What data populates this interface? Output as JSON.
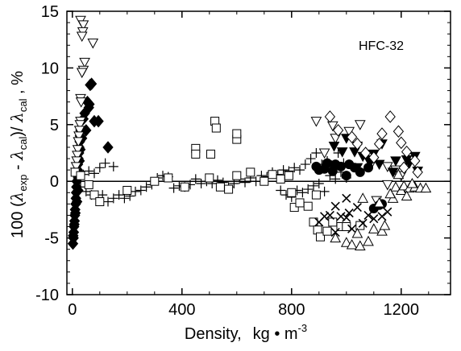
{
  "chart_data": {
    "type": "scatter",
    "annotation": "HFC-32",
    "xlabel_parts": {
      "main": "Density,",
      "unit": "kg • m",
      "exp": "-3"
    },
    "ylabel_parts": {
      "pre": "100 (",
      "lam1": "λ",
      "sub_exp": "exp",
      "minus": " - ",
      "lam2": "λ",
      "sub_cal": "cal",
      "mid": ")/ ",
      "lam3": "λ",
      "sub_cal2": "cal",
      "post": " ,   %"
    },
    "xlim": [
      -20,
      1380
    ],
    "ylim": [
      -10,
      15
    ],
    "x_ticks": [
      0,
      400,
      800,
      1200
    ],
    "x_tick_labels": [
      "0",
      "400",
      "800",
      "1200"
    ],
    "y_ticks": [
      -10,
      -5,
      0,
      5,
      10,
      15
    ],
    "y_tick_labels": [
      "-10",
      "-5",
      "0",
      "5",
      "10",
      "15"
    ],
    "grid": false,
    "reference_line_y": 0,
    "series": [
      {
        "marker": "filled-diamond",
        "points": [
          [
            2,
            -5.5
          ],
          [
            4,
            -5
          ],
          [
            5,
            -4.5
          ],
          [
            6,
            -4
          ],
          [
            8,
            -3.5
          ],
          [
            9,
            -3
          ],
          [
            10,
            -2.5
          ],
          [
            12,
            -2
          ],
          [
            13,
            -1.5
          ],
          [
            14,
            -1
          ],
          [
            15,
            -0.5
          ],
          [
            16,
            0
          ],
          [
            18,
            0.5
          ],
          [
            19,
            1
          ],
          [
            20,
            1.5
          ],
          [
            22,
            2
          ],
          [
            24,
            2.5
          ],
          [
            25,
            3
          ],
          [
            27,
            3.5
          ],
          [
            28,
            4
          ],
          [
            30,
            4.5
          ],
          [
            40,
            5.5
          ],
          [
            45,
            6
          ],
          [
            55,
            7
          ],
          [
            65,
            8.5
          ],
          [
            70,
            8.6
          ],
          [
            80,
            5.3
          ],
          [
            95,
            5.3
          ],
          [
            130,
            3
          ],
          [
            3,
            -4.8
          ],
          [
            7,
            -3.8
          ],
          [
            11,
            -2.8
          ],
          [
            17,
            -1.8
          ],
          [
            21,
            -0.8
          ],
          [
            23,
            0.8
          ],
          [
            26,
            1.8
          ],
          [
            29,
            2.8
          ],
          [
            35,
            3.8
          ],
          [
            50,
            4.5
          ],
          [
            60,
            6.5
          ],
          [
            62,
            6.8
          ]
        ]
      },
      {
        "marker": "open-down-triangle",
        "points": [
          [
            30,
            14.2
          ],
          [
            40,
            13.8
          ],
          [
            38,
            13.2
          ],
          [
            35,
            12.8
          ],
          [
            75,
            12.2
          ],
          [
            45,
            10.5
          ],
          [
            40,
            9.8
          ],
          [
            35,
            9.6
          ],
          [
            30,
            7.3
          ],
          [
            32,
            7
          ],
          [
            30,
            5.3
          ],
          [
            28,
            5
          ],
          [
            26,
            4.5
          ],
          [
            24,
            4
          ],
          [
            22,
            3.5
          ],
          [
            20,
            2.8
          ],
          [
            18,
            2.3
          ],
          [
            16,
            1.8
          ],
          [
            14,
            1.3
          ],
          [
            12,
            0.8
          ],
          [
            890,
            5.3
          ],
          [
            950,
            4.9
          ],
          [
            960,
            3.8
          ],
          [
            920,
            2.5
          ],
          [
            1010,
            4.4
          ],
          [
            1050,
            5
          ],
          [
            1090,
            1.5
          ],
          [
            1150,
            1.3
          ],
          [
            1180,
            1
          ],
          [
            1200,
            0.5
          ],
          [
            1150,
            -0.3
          ],
          [
            1110,
            -1.7
          ]
        ]
      },
      {
        "marker": "plus",
        "points": [
          [
            20,
            0.3
          ],
          [
            40,
            0.6
          ],
          [
            60,
            0.9
          ],
          [
            80,
            0.7
          ],
          [
            100,
            1.2
          ],
          [
            120,
            1.6
          ],
          [
            150,
            1.3
          ],
          [
            30,
            -0.5
          ],
          [
            50,
            -0.9
          ],
          [
            70,
            -1.2
          ],
          [
            90,
            -1.5
          ],
          [
            110,
            -1.2
          ],
          [
            130,
            -1.8
          ],
          [
            150,
            -1.5
          ],
          [
            170,
            -1.2
          ],
          [
            190,
            -1.5
          ],
          [
            210,
            -1.3
          ],
          [
            230,
            -0.9
          ],
          [
            250,
            -0.8
          ],
          [
            270,
            -0.5
          ],
          [
            290,
            -0.3
          ],
          [
            310,
            0.3
          ],
          [
            330,
            0.5
          ],
          [
            350,
            0.4
          ],
          [
            370,
            -0.6
          ],
          [
            390,
            -0.4
          ],
          [
            410,
            -0.5
          ],
          [
            430,
            -0.3
          ],
          [
            450,
            0.2
          ],
          [
            470,
            -0.2
          ],
          [
            490,
            0
          ],
          [
            510,
            -0.2
          ],
          [
            530,
            0.1
          ],
          [
            550,
            -0.1
          ],
          [
            570,
            -0.5
          ],
          [
            590,
            -0.2
          ],
          [
            610,
            0.2
          ],
          [
            630,
            -0.1
          ],
          [
            650,
            0.3
          ],
          [
            670,
            0
          ],
          [
            690,
            0.5
          ],
          [
            710,
            0.4
          ],
          [
            730,
            0.8
          ],
          [
            750,
            0.6
          ],
          [
            770,
            1
          ],
          [
            790,
            0.9
          ],
          [
            810,
            1.2
          ],
          [
            830,
            1
          ],
          [
            850,
            1.5
          ],
          [
            870,
            2
          ],
          [
            890,
            2.5
          ],
          [
            910,
            1.5
          ],
          [
            930,
            1.8
          ],
          [
            950,
            1.3
          ],
          [
            970,
            2.5
          ],
          [
            990,
            1.6
          ],
          [
            760,
            -0.8
          ],
          [
            780,
            -1.2
          ],
          [
            800,
            -1.4
          ],
          [
            820,
            -0.8
          ],
          [
            840,
            -1
          ],
          [
            860,
            -0.7
          ],
          [
            880,
            -0.4
          ],
          [
            900,
            -0.2
          ],
          [
            920,
            -0.9
          ],
          [
            940,
            0.5
          ],
          [
            960,
            0.2
          ],
          [
            980,
            0.8
          ],
          [
            1000,
            0.3
          ]
        ]
      },
      {
        "marker": "open-square",
        "points": [
          [
            520,
            5.3
          ],
          [
            525,
            4.7
          ],
          [
            600,
            3.7
          ],
          [
            600,
            4.2
          ],
          [
            450,
            2.9
          ],
          [
            450,
            2.4
          ],
          [
            505,
            2.4
          ],
          [
            10,
            0.8
          ],
          [
            30,
            0.5
          ],
          [
            60,
            -0.3
          ],
          [
            80,
            -1.2
          ],
          [
            100,
            -1.8
          ],
          [
            200,
            -0.8
          ],
          [
            300,
            0
          ],
          [
            350,
            0.3
          ],
          [
            410,
            -0.5
          ],
          [
            500,
            0.3
          ],
          [
            540,
            -0.5
          ],
          [
            570,
            -0.7
          ],
          [
            600,
            0.5
          ],
          [
            650,
            0.8
          ],
          [
            700,
            0
          ],
          [
            730,
            0.6
          ],
          [
            760,
            0.2
          ],
          [
            800,
            -1
          ],
          [
            810,
            -2.3
          ],
          [
            830,
            -1.9
          ],
          [
            860,
            -2.2
          ],
          [
            880,
            -3.6
          ],
          [
            895,
            -4.3
          ],
          [
            905,
            -4.9
          ],
          [
            930,
            -4.4
          ],
          [
            950,
            -3.6
          ],
          [
            980,
            -4
          ],
          [
            1000,
            -4
          ],
          [
            1050,
            -3.9
          ],
          [
            790,
            0.5
          ],
          [
            890,
            -1.2
          ]
        ]
      },
      {
        "marker": "filled-down-triangle",
        "points": [
          [
            955,
            3.1
          ],
          [
            985,
            2.6
          ],
          [
            1000,
            3.8
          ],
          [
            1030,
            2.6
          ],
          [
            1040,
            3.1
          ],
          [
            1060,
            2.2
          ],
          [
            1080,
            1.9
          ],
          [
            1100,
            2.4
          ],
          [
            1130,
            3.3
          ],
          [
            1180,
            1.8
          ],
          [
            1220,
            1.9
          ],
          [
            1230,
            1.6
          ],
          [
            1250,
            2.2
          ],
          [
            1260,
            0.9
          ],
          [
            1040,
            1.2
          ],
          [
            1090,
            1.8
          ],
          [
            1120,
            1.5
          ],
          [
            1170,
            0.8
          ]
        ]
      },
      {
        "marker": "open-diamond",
        "points": [
          [
            940,
            5.7
          ],
          [
            970,
            4.5
          ],
          [
            1020,
            3.9
          ],
          [
            1040,
            3.3
          ],
          [
            1070,
            2.5
          ],
          [
            1100,
            2.1
          ],
          [
            1120,
            3.3
          ],
          [
            1130,
            4.2
          ],
          [
            1160,
            5.7
          ],
          [
            1190,
            4.4
          ],
          [
            1200,
            3.4
          ],
          [
            1220,
            2.6
          ],
          [
            1250,
            1.8
          ],
          [
            1210,
            1.2
          ],
          [
            1260,
            0.8
          ]
        ]
      },
      {
        "marker": "filled-circle",
        "points": [
          [
            890,
            1.3
          ],
          [
            920,
            1.1
          ],
          [
            950,
            0.9
          ],
          [
            980,
            1.3
          ],
          [
            1010,
            1.5
          ],
          [
            1050,
            0.8
          ],
          [
            1080,
            1.2
          ],
          [
            900,
            1
          ],
          [
            930,
            1.6
          ],
          [
            960,
            1.5
          ],
          [
            1100,
            -2.4
          ],
          [
            1120,
            -2.1
          ],
          [
            1130,
            -2
          ],
          [
            1000,
            0.5
          ],
          [
            1030,
            1.2
          ]
        ]
      },
      {
        "marker": "cross",
        "points": [
          [
            900,
            -3.6
          ],
          [
            920,
            -3.1
          ],
          [
            940,
            -3
          ],
          [
            960,
            -2.2
          ],
          [
            980,
            -3.1
          ],
          [
            1000,
            -3.2
          ],
          [
            1010,
            -2.8
          ],
          [
            1040,
            -2.3
          ],
          [
            1060,
            -3.7
          ],
          [
            1080,
            -3
          ],
          [
            1100,
            -3.3
          ],
          [
            1130,
            -3.1
          ],
          [
            1150,
            -2.7
          ],
          [
            960,
            -4.5
          ],
          [
            1020,
            -4.2
          ],
          [
            1000,
            -1.5
          ]
        ]
      },
      {
        "marker": "open-up-triangle",
        "points": [
          [
            960,
            -5
          ],
          [
            1000,
            -5.4
          ],
          [
            1020,
            -5.6
          ],
          [
            1040,
            -4.6
          ],
          [
            1050,
            -5.7
          ],
          [
            1080,
            -5.3
          ],
          [
            1100,
            -4.2
          ],
          [
            1130,
            -4.4
          ],
          [
            1140,
            -3.9
          ],
          [
            1170,
            -1.5
          ],
          [
            1180,
            -0.5
          ],
          [
            1200,
            -0.8
          ],
          [
            1210,
            -0.4
          ],
          [
            1230,
            -0.6
          ],
          [
            1250,
            -0.5
          ],
          [
            1270,
            -0.6
          ],
          [
            1290,
            -0.6
          ],
          [
            1220,
            -1.3
          ],
          [
            1160,
            -1.1
          ],
          [
            1120,
            -1.9
          ],
          [
            1060,
            -1.5
          ],
          [
            1190,
            0.6
          ],
          [
            1240,
            -0.2
          ]
        ]
      }
    ]
  }
}
